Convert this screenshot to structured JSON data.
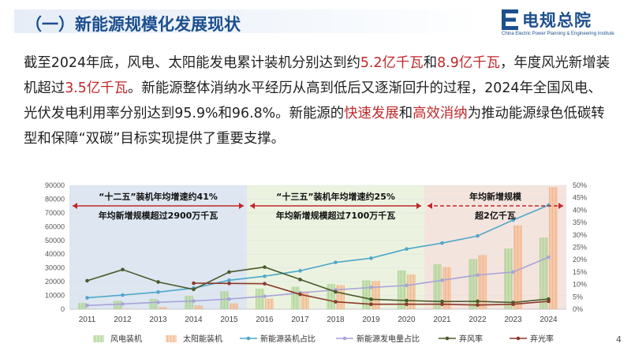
{
  "header": {
    "title": "（一）新能源规模化发展现状"
  },
  "logo": {
    "name": "电规总院",
    "subtitle": "China Electric Power Planning & Engineering Institute"
  },
  "paragraph": [
    {
      "t": "截至2024年底，风电、太阳能发电累计装机分别达到约",
      "hl": false
    },
    {
      "t": "5.2亿千瓦",
      "hl": true
    },
    {
      "t": "和",
      "hl": false
    },
    {
      "t": "8.9亿千瓦",
      "hl": true
    },
    {
      "t": "，年度风光新增装机超过",
      "hl": false
    },
    {
      "t": "3.5亿千瓦",
      "hl": true
    },
    {
      "t": "。新能源整体消纳水平经历从高到低后又逐渐回升的过程，2024年全国风电、光伏发电利用率分别达到95.9%和96.8%。新能源的",
      "hl": false
    },
    {
      "t": "快速发展",
      "hl": true
    },
    {
      "t": "和",
      "hl": false
    },
    {
      "t": "高效消纳",
      "hl": true
    },
    {
      "t": "为推动能源绿色低碳转型和保障“双碳”目标实现提供了重要支撑。",
      "hl": false
    }
  ],
  "page_number": "4",
  "chart_data": {
    "type": "bar",
    "categories": [
      "2011",
      "2012",
      "2013",
      "2014",
      "2015",
      "2016",
      "2017",
      "2018",
      "2019",
      "2020",
      "2021",
      "2022",
      "2023",
      "2024"
    ],
    "ylim_left": [
      0,
      90000
    ],
    "yticks_left": [
      "0",
      "10000",
      "20000",
      "30000",
      "40000",
      "50000",
      "60000",
      "70000",
      "80000",
      "90000"
    ],
    "ylim_right": [
      0,
      50
    ],
    "yticks_right": [
      "0%",
      "5%",
      "10%",
      "15%",
      "20%",
      "25%",
      "30%",
      "35%",
      "40%",
      "45%",
      "50%"
    ],
    "series": [
      {
        "name": "风电装机",
        "kind": "bar",
        "axis": "left",
        "color": "#a9d18e",
        "values": [
          4600,
          6100,
          7600,
          9700,
          13100,
          14900,
          16400,
          18400,
          21000,
          28200,
          32800,
          36500,
          44100,
          52100
        ]
      },
      {
        "name": "太阳能装机",
        "kind": "bar",
        "axis": "left",
        "color": "#f4b183",
        "values": [
          200,
          300,
          1600,
          2800,
          4300,
          7700,
          13000,
          17500,
          20500,
          25300,
          30600,
          39300,
          60900,
          88700
        ]
      },
      {
        "name": "新能源装机占比",
        "kind": "line",
        "axis": "right",
        "color": "#4fa8c9",
        "values": [
          4.6,
          5.7,
          6.9,
          8.5,
          11.7,
          13.3,
          15.5,
          18.9,
          20.6,
          24.3,
          26.7,
          29.6,
          36.0,
          42.0
        ]
      },
      {
        "name": "新能源发电量占比",
        "kind": "line",
        "axis": "right",
        "color": "#a9a4d8",
        "values": [
          1.5,
          2.1,
          2.8,
          3.3,
          4.1,
          5.2,
          6.6,
          7.8,
          8.8,
          9.6,
          11.7,
          13.8,
          15.0,
          21.0
        ]
      },
      {
        "name": "弃风率",
        "kind": "line",
        "axis": "right",
        "color": "#4a5a2a",
        "values": [
          11.5,
          16.0,
          11.0,
          8.0,
          15.0,
          17.0,
          12.0,
          7.0,
          4.0,
          3.5,
          3.1,
          3.2,
          2.7,
          4.1
        ]
      },
      {
        "name": "弃光率",
        "kind": "line",
        "axis": "right",
        "color": "#8b3a2a",
        "values": [
          null,
          null,
          null,
          10.5,
          10.4,
          10.3,
          6.0,
          3.0,
          2.0,
          2.0,
          2.0,
          1.7,
          2.0,
          3.2
        ]
      }
    ],
    "periods": [
      {
        "line1": "“十二五”装机年均增速约41%",
        "line2": "年均新增规模超过2900万千瓦",
        "from": "2011",
        "to": "2015",
        "color": "#dde6f1"
      },
      {
        "line1": "“十三五”装机年均增速约25%",
        "line2": "年均新增规模超过7100万千瓦",
        "from": "2016",
        "to": "2020",
        "color": "#ebf3e0"
      },
      {
        "line1": "年均新增规模",
        "line2": "超2亿千瓦",
        "from": "2021",
        "to": "2024",
        "color": "#f4e4de"
      }
    ]
  }
}
